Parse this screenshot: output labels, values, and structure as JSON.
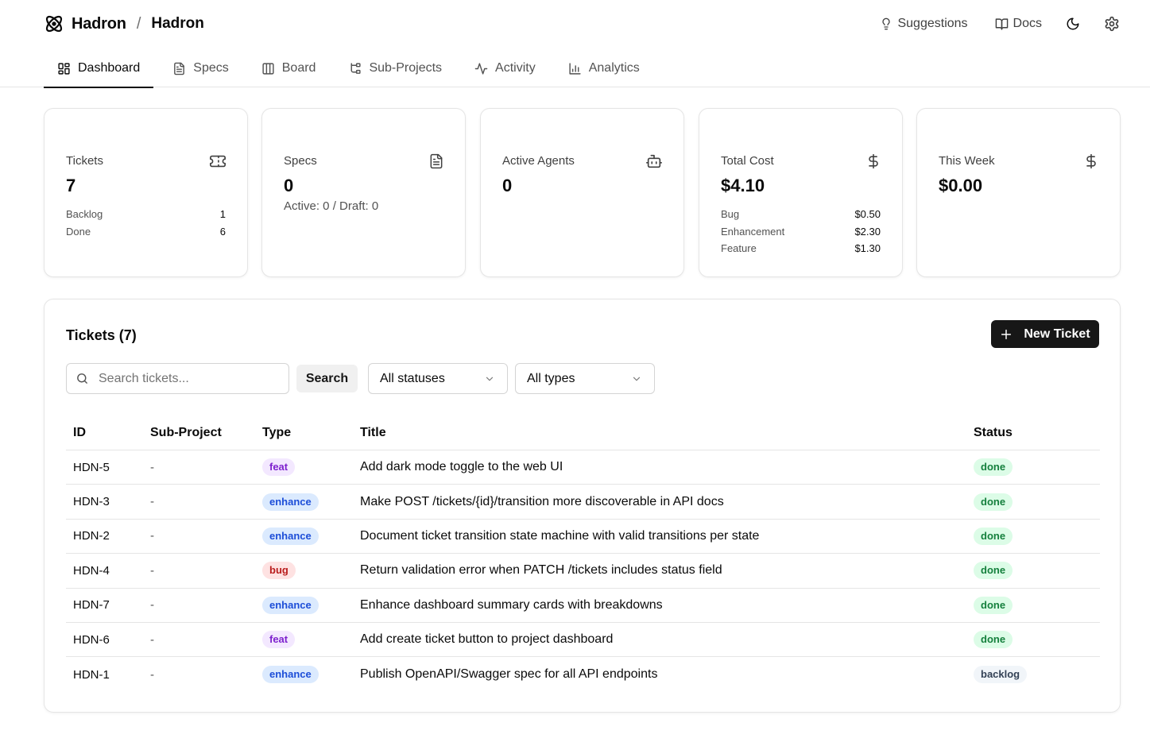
{
  "header": {
    "brand": "Hadron",
    "separator": "/",
    "project": "Hadron",
    "suggestions_label": "Suggestions",
    "docs_label": "Docs"
  },
  "tabs": [
    {
      "label": "Dashboard",
      "icon": "dashboard-icon",
      "active": true
    },
    {
      "label": "Specs",
      "icon": "file-text-icon"
    },
    {
      "label": "Board",
      "icon": "columns-icon"
    },
    {
      "label": "Sub-Projects",
      "icon": "git-branch-icon"
    },
    {
      "label": "Activity",
      "icon": "activity-icon"
    },
    {
      "label": "Analytics",
      "icon": "bar-chart-icon"
    }
  ],
  "cards": {
    "tickets": {
      "label": "Tickets",
      "value": "7",
      "rows": [
        {
          "k": "Backlog",
          "v": "1"
        },
        {
          "k": "Done",
          "v": "6"
        }
      ]
    },
    "specs": {
      "label": "Specs",
      "value": "0",
      "sub": "Active: 0 / Draft: 0"
    },
    "agents": {
      "label": "Active Agents",
      "value": "0"
    },
    "cost": {
      "label": "Total Cost",
      "value": "$4.10",
      "rows": [
        {
          "k": "Bug",
          "v": "$0.50"
        },
        {
          "k": "Enhancement",
          "v": "$2.30"
        },
        {
          "k": "Feature",
          "v": "$1.30"
        }
      ]
    },
    "week": {
      "label": "This Week",
      "value": "$0.00"
    }
  },
  "tickets_panel": {
    "title": "Tickets (7)",
    "new_button": "New Ticket",
    "search_placeholder": "Search tickets...",
    "search_button": "Search",
    "status_filter": "All statuses",
    "type_filter": "All types",
    "columns": {
      "id": "ID",
      "sub": "Sub-Project",
      "type": "Type",
      "title": "Title",
      "status": "Status"
    },
    "rows": [
      {
        "id": "HDN-5",
        "sub": "-",
        "type": "feat",
        "title": "Add dark mode toggle to the web UI",
        "status": "done"
      },
      {
        "id": "HDN-3",
        "sub": "-",
        "type": "enhance",
        "title": "Make POST /tickets/{id}/transition more discoverable in API docs",
        "status": "done"
      },
      {
        "id": "HDN-2",
        "sub": "-",
        "type": "enhance",
        "title": "Document ticket transition state machine with valid transitions per state",
        "status": "done"
      },
      {
        "id": "HDN-4",
        "sub": "-",
        "type": "bug",
        "title": "Return validation error when PATCH /tickets includes status field",
        "status": "done"
      },
      {
        "id": "HDN-7",
        "sub": "-",
        "type": "enhance",
        "title": "Enhance dashboard summary cards with breakdowns",
        "status": "done"
      },
      {
        "id": "HDN-6",
        "sub": "-",
        "type": "feat",
        "title": "Add create ticket button to project dashboard",
        "status": "done"
      },
      {
        "id": "HDN-1",
        "sub": "-",
        "type": "enhance",
        "title": "Publish OpenAPI/Swagger spec for all API endpoints",
        "status": "backlog"
      }
    ]
  },
  "colors": {
    "primary": "#171717",
    "border": "#e5e5e5",
    "muted": "#525252"
  }
}
